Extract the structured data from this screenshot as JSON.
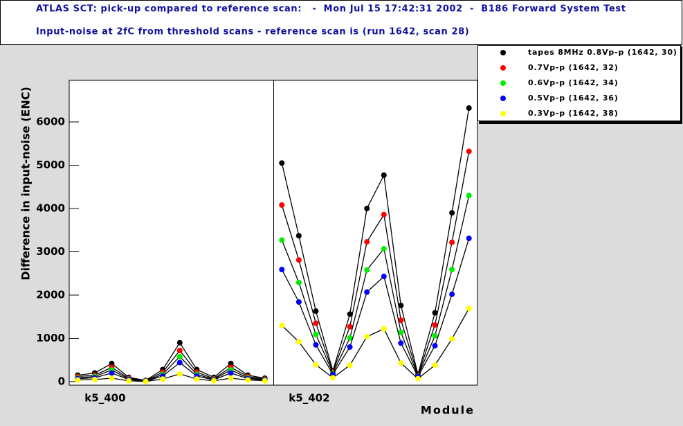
{
  "chart_data": {
    "type": "line",
    "title": "ATLAS SCT: pick-up compared to reference scan:   -  Mon Jul 15 17:42:31 2002  -  B186 Forward System Test",
    "subtitle": "Input-noise at 2fC from threshold scans - reference scan is (run 1642, scan 28)",
    "y_label": "Difference in input-noise (ENC)",
    "x_label": "Module",
    "categories": [
      "k5_400",
      null,
      null,
      null,
      null,
      null,
      null,
      null,
      null,
      null,
      null,
      null,
      "k5_402",
      null,
      null,
      null,
      null,
      null,
      null,
      null,
      null,
      null,
      null,
      null
    ],
    "ylim": [
      -80,
      6960
    ],
    "yticks": [
      0,
      1000,
      2000,
      3000,
      4000,
      5000,
      6000
    ],
    "series": [
      {
        "name": "tapes 8MHz 0.8Vp-p (1642, 30)",
        "color": "#000000",
        "values": [
          150,
          200,
          420,
          100,
          30,
          280,
          900,
          280,
          100,
          420,
          150,
          80,
          5050,
          3370,
          1630,
          250,
          1560,
          4000,
          4770,
          1760,
          170,
          1590,
          3900,
          6320
        ]
      },
      {
        "name": "0.7Vp-p (1642, 32)",
        "color": "#ff0000",
        "values": [
          120,
          150,
          330,
          80,
          20,
          220,
          720,
          220,
          70,
          330,
          120,
          60,
          4080,
          2810,
          1350,
          230,
          1270,
          3230,
          3860,
          1420,
          150,
          1310,
          3220,
          5320
        ]
      },
      {
        "name": "0.6Vp-p (1642, 34)",
        "color": "#00ee00",
        "values": [
          90,
          120,
          270,
          60,
          15,
          170,
          580,
          170,
          55,
          270,
          90,
          50,
          3270,
          2290,
          1090,
          200,
          1010,
          2580,
          3070,
          1140,
          130,
          1060,
          2590,
          4300
        ]
      },
      {
        "name": "0.5Vp-p (1642, 36)",
        "color": "#0000ff",
        "values": [
          70,
          90,
          200,
          50,
          10,
          130,
          440,
          130,
          40,
          200,
          70,
          40,
          2590,
          1840,
          850,
          170,
          800,
          2070,
          2430,
          890,
          120,
          830,
          2020,
          3310
        ]
      },
      {
        "name": "0.3Vp-p (1642, 38)",
        "color": "#ffff00",
        "values": [
          40,
          50,
          80,
          20,
          5,
          60,
          180,
          60,
          20,
          80,
          40,
          20,
          1300,
          920,
          390,
          90,
          380,
          1040,
          1220,
          430,
          70,
          380,
          990,
          1690
        ]
      }
    ]
  }
}
